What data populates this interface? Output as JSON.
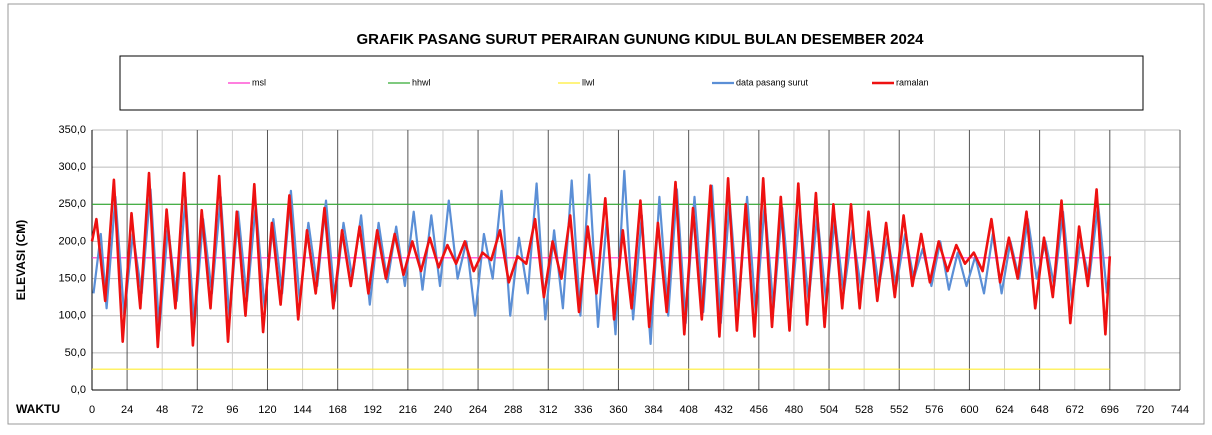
{
  "chart_data": {
    "type": "line",
    "title": "GRAFIK PASANG SURUT PERAIRAN GUNUNG KIDUL BULAN DESEMBER 2024",
    "y_label": "ELEVASI (CM)",
    "x_label": "WAKTU",
    "xlim": [
      0,
      744
    ],
    "xticks": [
      0,
      24,
      48,
      72,
      96,
      120,
      144,
      168,
      192,
      216,
      240,
      264,
      288,
      312,
      336,
      360,
      384,
      408,
      432,
      456,
      480,
      504,
      528,
      552,
      576,
      600,
      624,
      648,
      672,
      696,
      720,
      744
    ],
    "ylim": [
      0,
      350
    ],
    "yticks": [
      {
        "value": 0,
        "label": "0,0"
      },
      {
        "value": 50,
        "label": "50,0"
      },
      {
        "value": 100,
        "label": "100,0"
      },
      {
        "value": 150,
        "label": "150,0"
      },
      {
        "value": 200,
        "label": "200,0"
      },
      {
        "value": 250,
        "label": "250,0"
      },
      {
        "value": 300,
        "label": "300,0"
      },
      {
        "value": 350,
        "label": "350,0"
      }
    ],
    "grid": true,
    "series": [
      {
        "name": "msl",
        "color": "#ff33cc",
        "width": 1.2,
        "x": [
          0,
          696
        ],
        "values": [
          178,
          178
        ]
      },
      {
        "name": "hhwl",
        "color": "#33aa33",
        "width": 1.2,
        "x": [
          0,
          696
        ],
        "values": [
          250,
          250
        ]
      },
      {
        "name": "llwl",
        "color": "#ffee33",
        "width": 1.2,
        "x": [
          0,
          696
        ],
        "values": [
          28,
          28
        ]
      },
      {
        "name": "data pasang surut",
        "color": "#5b8fd6",
        "width": 2.2,
        "x": [
          1,
          6,
          10,
          16,
          22,
          28,
          34,
          40,
          46,
          52,
          58,
          64,
          70,
          76,
          82,
          88,
          94,
          100,
          106,
          112,
          118,
          124,
          130,
          136,
          142,
          148,
          154,
          160,
          166,
          172,
          178,
          184,
          190,
          196,
          202,
          208,
          214,
          220,
          226,
          232,
          238,
          244,
          250,
          256,
          262,
          268,
          274,
          280,
          286,
          292,
          298,
          304,
          310,
          316,
          322,
          328,
          334,
          340,
          346,
          352,
          358,
          364,
          370,
          376,
          382,
          388,
          394,
          400,
          406,
          412,
          418,
          424,
          430,
          436,
          442,
          448,
          454,
          460,
          466,
          472,
          478,
          484,
          490,
          496,
          502,
          508,
          514,
          520,
          526,
          532,
          538,
          544,
          550,
          556,
          562,
          568,
          574,
          580,
          586,
          592,
          598,
          604,
          610,
          616,
          622,
          628,
          634,
          640,
          646,
          652,
          658,
          664,
          670,
          676,
          682,
          688,
          694
        ],
        "values": [
          130,
          210,
          110,
          260,
          100,
          210,
          130,
          270,
          80,
          220,
          120,
          260,
          85,
          230,
          130,
          260,
          95,
          240,
          120,
          250,
          110,
          230,
          130,
          268,
          120,
          225,
          140,
          255,
          120,
          225,
          150,
          235,
          115,
          225,
          145,
          220,
          140,
          240,
          135,
          235,
          140,
          255,
          150,
          200,
          100,
          210,
          150,
          268,
          100,
          205,
          130,
          278,
          95,
          215,
          110,
          282,
          100,
          290,
          85,
          230,
          75,
          295,
          95,
          235,
          62,
          260,
          100,
          270,
          90,
          260,
          105,
          275,
          90,
          255,
          110,
          260,
          100,
          250,
          110,
          245,
          110,
          240,
          120,
          235,
          120,
          230,
          130,
          215,
          135,
          220,
          140,
          205,
          140,
          210,
          150,
          190,
          140,
          200,
          135,
          185,
          140,
          180,
          130,
          210,
          130,
          200,
          150,
          230,
          150,
          200,
          140,
          240,
          120,
          200,
          150,
          250,
          130
        ]
      },
      {
        "name": "ramalan",
        "color": "#ee1111",
        "width": 2.6,
        "x": [
          0,
          3,
          9,
          15,
          21,
          27,
          33,
          39,
          45,
          51,
          57,
          63,
          69,
          75,
          81,
          87,
          93,
          99,
          105,
          111,
          117,
          123,
          129,
          135,
          141,
          147,
          153,
          159,
          165,
          171,
          177,
          183,
          189,
          195,
          201,
          207,
          213,
          219,
          225,
          231,
          237,
          243,
          249,
          255,
          261,
          267,
          273,
          279,
          285,
          291,
          297,
          303,
          309,
          315,
          321,
          327,
          333,
          339,
          345,
          351,
          357,
          363,
          369,
          375,
          381,
          387,
          393,
          399,
          405,
          411,
          417,
          423,
          429,
          435,
          441,
          447,
          453,
          459,
          465,
          471,
          477,
          483,
          489,
          495,
          501,
          507,
          513,
          519,
          525,
          531,
          537,
          543,
          549,
          555,
          561,
          567,
          573,
          579,
          585,
          591,
          597,
          603,
          609,
          615,
          621,
          627,
          633,
          639,
          645,
          651,
          657,
          663,
          669,
          675,
          681,
          687,
          693,
          696
        ],
        "values": [
          200,
          230,
          120,
          283,
          65,
          238,
          110,
          292,
          58,
          243,
          110,
          292,
          60,
          242,
          110,
          288,
          65,
          240,
          100,
          277,
          78,
          225,
          115,
          262,
          95,
          215,
          130,
          245,
          110,
          215,
          140,
          220,
          130,
          215,
          150,
          210,
          155,
          200,
          160,
          205,
          165,
          195,
          170,
          200,
          160,
          185,
          175,
          215,
          145,
          180,
          170,
          230,
          125,
          200,
          150,
          235,
          105,
          220,
          130,
          258,
          95,
          215,
          110,
          255,
          85,
          225,
          105,
          280,
          75,
          245,
          95,
          275,
          72,
          285,
          80,
          250,
          72,
          285,
          85,
          260,
          80,
          278,
          88,
          265,
          85,
          250,
          110,
          250,
          110,
          240,
          120,
          225,
          125,
          235,
          140,
          210,
          145,
          200,
          160,
          195,
          170,
          185,
          160,
          230,
          145,
          205,
          150,
          240,
          110,
          205,
          125,
          255,
          90,
          220,
          140,
          270,
          75,
          180
        ]
      }
    ]
  }
}
